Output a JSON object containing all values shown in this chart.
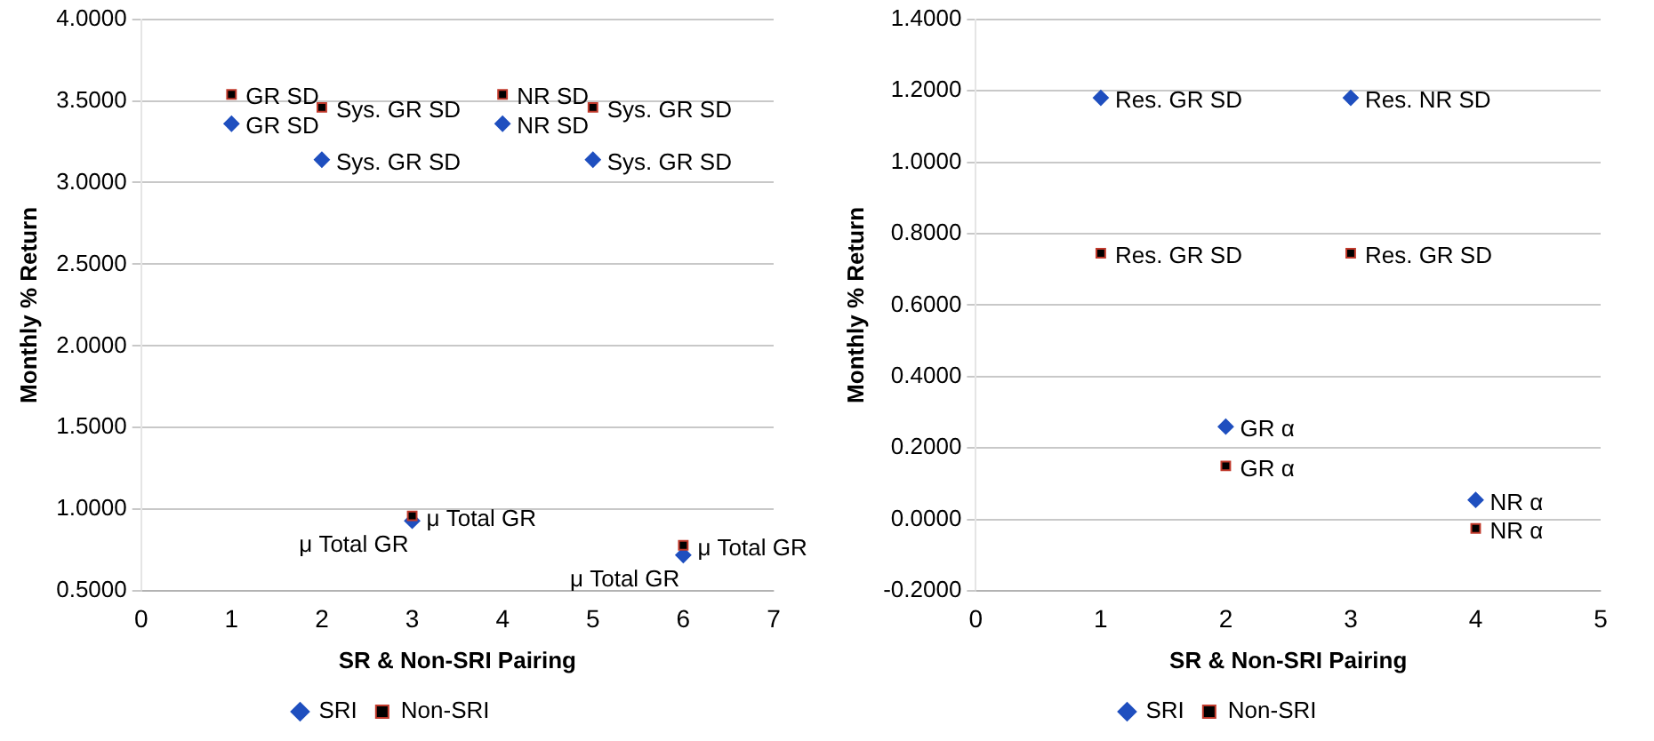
{
  "chart_data": [
    {
      "type": "scatter",
      "xlabel": "SR & Non-SRI Pairing",
      "ylabel": "Monthly % Return",
      "xlim": [
        0,
        7
      ],
      "xticks": [
        0,
        1,
        2,
        3,
        4,
        5,
        6,
        7
      ],
      "ylim": [
        0.5,
        4
      ],
      "yticks": [
        {
          "value": 0.5,
          "label": "0.5000"
        },
        {
          "value": 1,
          "label": "1.0000"
        },
        {
          "value": 1.5,
          "label": "1.5000"
        },
        {
          "value": 2,
          "label": "2.0000"
        },
        {
          "value": 2.5,
          "label": "2.5000"
        },
        {
          "value": 3,
          "label": "3.0000"
        },
        {
          "value": 3.5,
          "label": "3.5000"
        },
        {
          "value": 4,
          "label": "4.0000"
        }
      ],
      "grid": "y",
      "legend": "bottom",
      "series": [
        {
          "name": "SRI",
          "color": "#1f4fbf",
          "marker": "diamond",
          "x": [
            1,
            2,
            3,
            4,
            5,
            6
          ],
          "values": [
            3.36,
            3.14,
            0.93,
            3.36,
            3.14,
            0.72
          ]
        },
        {
          "name": "Non-SRI",
          "color": "#000000",
          "marker": "square",
          "x": [
            1,
            2,
            3,
            4,
            5,
            6
          ],
          "values": [
            3.54,
            3.46,
            0.96,
            3.54,
            3.46,
            0.78
          ]
        }
      ],
      "annotations": [
        {
          "text": "GR SD",
          "x": 1,
          "y": 3.36
        },
        {
          "text": "Sys. GR SD",
          "x": 2,
          "y": 3.14
        },
        {
          "text": "μ Total GR",
          "x": 3,
          "y": 0.93
        },
        {
          "text": "NR SD",
          "x": 4,
          "y": 3.36
        },
        {
          "text": "Sys. GR SD",
          "x": 5,
          "y": 3.14
        },
        {
          "text": "μ Total GR",
          "x": 6,
          "y": 0.72
        },
        {
          "text": "GR SD",
          "x": 1,
          "y": 3.54
        },
        {
          "text": "Sys. GR SD",
          "x": 2,
          "y": 3.46
        },
        {
          "text": "μ Total GR",
          "x": 3,
          "y": 0.96
        },
        {
          "text": "NR SD",
          "x": 4,
          "y": 3.54
        },
        {
          "text": "Sys. GR SD",
          "x": 5,
          "y": 3.46
        },
        {
          "text": "μ Total GR",
          "x": 6,
          "y": 0.78
        }
      ]
    },
    {
      "type": "scatter",
      "xlabel": "SR & Non-SRI Pairing",
      "ylabel": "Monthly % Return",
      "xlim": [
        0,
        5
      ],
      "xticks": [
        0,
        1,
        2,
        3,
        4,
        5
      ],
      "ylim": [
        -0.2,
        1.4
      ],
      "yticks": [
        {
          "value": -0.2,
          "label": "-0.2000"
        },
        {
          "value": 0,
          "label": "0.0000"
        },
        {
          "value": 0.2,
          "label": "0.2000"
        },
        {
          "value": 0.4,
          "label": "0.4000"
        },
        {
          "value": 0.6,
          "label": "0.6000"
        },
        {
          "value": 0.8,
          "label": "0.8000"
        },
        {
          "value": 1,
          "label": "1.0000"
        },
        {
          "value": 1.2,
          "label": "1.2000"
        },
        {
          "value": 1.4,
          "label": "1.4000"
        }
      ],
      "grid": "y",
      "legend": "bottom",
      "series": [
        {
          "name": "SRI",
          "color": "#1f4fbf",
          "marker": "diamond",
          "x": [
            1,
            2,
            3,
            4
          ],
          "values": [
            1.18,
            0.26,
            1.18,
            0.055
          ]
        },
        {
          "name": "Non-SRI",
          "color": "#000000",
          "marker": "square",
          "x": [
            1,
            2,
            3,
            4
          ],
          "values": [
            0.745,
            0.15,
            0.745,
            -0.025
          ]
        }
      ],
      "annotations": [
        {
          "text": "Res. GR SD",
          "x": 1,
          "y": 1.18
        },
        {
          "text": "GR α",
          "x": 2,
          "y": 0.26
        },
        {
          "text": "Res. NR SD",
          "x": 3,
          "y": 1.18
        },
        {
          "text": "NR α",
          "x": 4,
          "y": 0.055
        },
        {
          "text": "Res. GR SD",
          "x": 1,
          "y": 0.745
        },
        {
          "text": "GR α",
          "x": 2,
          "y": 0.15
        },
        {
          "text": "Res. GR SD",
          "x": 3,
          "y": 0.745
        },
        {
          "text": "NR α",
          "x": 4,
          "y": -0.025
        }
      ]
    }
  ]
}
